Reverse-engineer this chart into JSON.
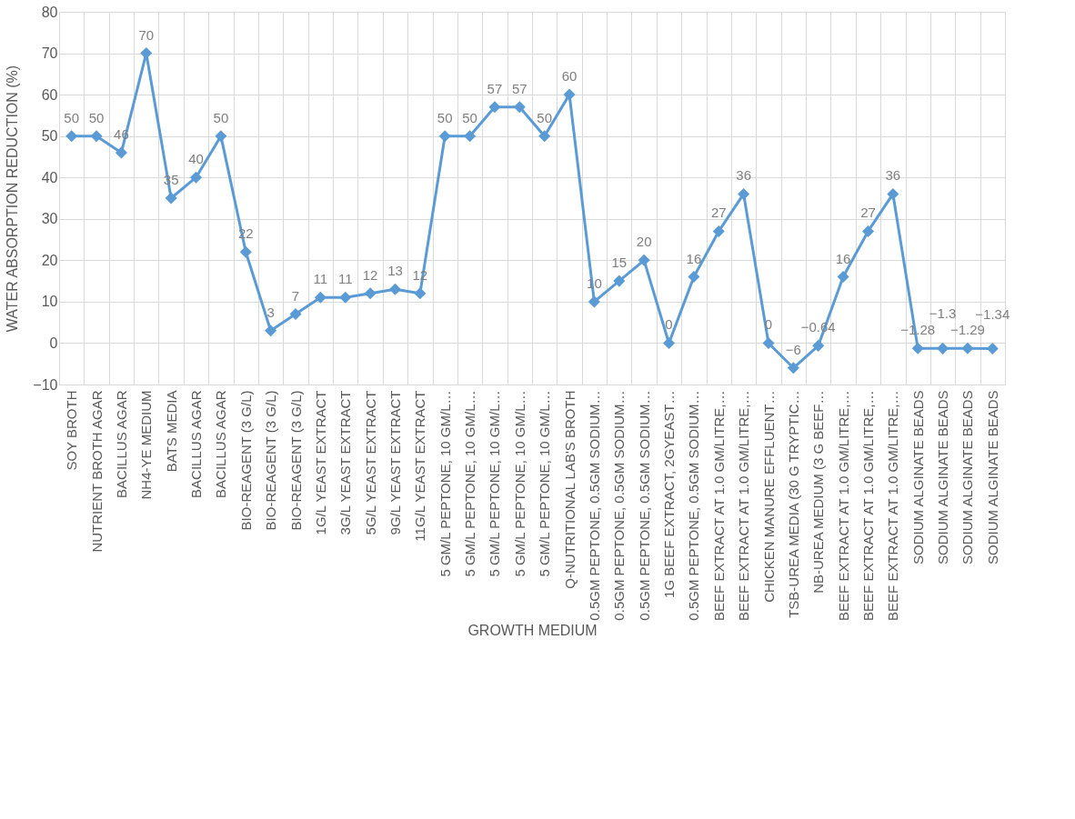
{
  "chart_data": {
    "type": "line",
    "xlabel": "GROWTH MEDIUM",
    "ylabel": "WATER ABSORPTION REDUCTION (%)",
    "categories": [
      "SOY BROTH",
      "NUTRIENT BROTH AGAR",
      "BACILLUS AGAR",
      "NH4-YE MEDIUM",
      "BATS MEDIA",
      "BACILLUS AGAR",
      "BACILLUS AGAR",
      "BIO-REAGENT (3 G/L)",
      "BIO-REAGENT (3 G/L)",
      "BIO-REAGENT (3 G/L)",
      "1G/L YEAST EXTRACT",
      "3G/L YEAST EXTRACT",
      "5G/L YEAST EXTRACT",
      "9G/L YEAST EXTRACT",
      "11G/L YEAST EXTRACT",
      "5 GM/L PEPTONE, 10 GM/L…",
      "5 GM/L PEPTONE, 10 GM/L…",
      "5 GM/L PEPTONE, 10 GM/L…",
      "5 GM/L PEPTONE, 10 GM/L…",
      "5 GM/L PEPTONE, 10 GM/L…",
      "Q-NUTRITIONAL LAB'S BROTH",
      "0.5GM PEPTONE, 0.5GM SODIUM…",
      "0.5GM PEPTONE, 0.5GM SODIUM…",
      "0.5GM PEPTONE, 0.5GM SODIUM…",
      "1G BEEF EXTRACT, 2GYEAST…",
      "0.5GM PEPTONE, 0.5GM SODIUM…",
      "BEEF EXTRACT AT 1.0 GM/LITRE,…",
      "BEEF EXTRACT AT 1.0 GM/LITRE,…",
      "CHICKEN MANURE EFFLUENT…",
      "TSB-UREA MEDIA (30 G TRYPTIC…",
      "NB-UREA MEDIUM (3 G BEEF…",
      "BEEF EXTRACT AT 1.0 GM/LITRE,…",
      "BEEF EXTRACT AT 1.0 GM/LITRE,…",
      "BEEF EXTRACT AT 1.0 GM/LITRE,…",
      "SODIUM ALGINATE BEADS",
      "SODIUM ALGINATE BEADS",
      "SODIUM ALGINATE BEADS",
      "SODIUM ALGINATE BEADS"
    ],
    "series": [
      {
        "color": "#5b9bd5",
        "values": [
          50,
          50,
          46,
          70,
          35,
          40,
          50,
          22,
          3,
          7,
          11,
          11,
          12,
          13,
          12,
          50,
          50,
          57,
          57,
          50,
          60,
          10,
          15,
          20,
          0,
          16,
          27,
          36,
          0,
          -6,
          -0.64,
          16,
          27,
          36,
          -1.28,
          -1.3,
          -1.29,
          -1.34
        ]
      }
    ],
    "ylim": [
      -10,
      80
    ],
    "yticks": [
      -10,
      0,
      10,
      20,
      30,
      40,
      50,
      60,
      70,
      80
    ],
    "grid": true,
    "marker": "diamond",
    "line_style": "solid",
    "data_labels": true
  }
}
